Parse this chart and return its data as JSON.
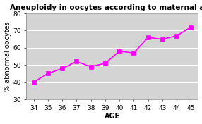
{
  "title": "Aneuploidy in oocytes according to maternal age",
  "xlabel": "AGE",
  "ylabel": "% abnormal oocytes",
  "x": [
    34,
    35,
    36,
    37,
    38,
    39,
    40,
    41,
    42,
    43,
    44,
    45
  ],
  "y": [
    40,
    45,
    48,
    52,
    49,
    51,
    58,
    57,
    66,
    65,
    67,
    72
  ],
  "line_color": "#ff00ff",
  "marker": "s",
  "marker_color": "#ff00ff",
  "marker_size": 4,
  "line_width": 1.2,
  "ylim": [
    30,
    80
  ],
  "yticks": [
    30,
    40,
    50,
    60,
    70,
    80
  ],
  "xlim": [
    33.5,
    45.5
  ],
  "xticks": [
    34,
    35,
    36,
    37,
    38,
    39,
    40,
    41,
    42,
    43,
    44,
    45
  ],
  "bg_color": "#d4d4d4",
  "outer_bg": "#ffffff",
  "title_fontsize": 7.5,
  "axis_label_fontsize": 7,
  "tick_fontsize": 6.5
}
